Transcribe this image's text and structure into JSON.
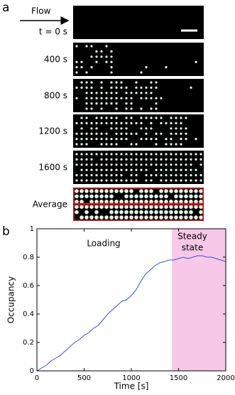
{
  "panel_a": {
    "label": "a",
    "flow": "Flow",
    "frames": [
      "t = 0 s",
      "400 s",
      "800 s",
      "1200 s",
      "1600 s",
      "Average"
    ]
  },
  "chart_data": {
    "type": "line",
    "panel_label": "b",
    "xlabel": "Time [s]",
    "ylabel": "Occupancy",
    "annotations": [
      "Loading",
      "Steady",
      "state"
    ],
    "shaded_region": [
      1430,
      2000
    ],
    "shade_color": "#f8c8e8",
    "xlim": [
      0,
      2000
    ],
    "ylim": [
      0,
      1
    ],
    "xticks": [
      0,
      500,
      1000,
      1500,
      2000
    ],
    "yticks": [
      0,
      0.2,
      0.4,
      0.6,
      0.8,
      1
    ],
    "x": [
      0,
      50,
      100,
      150,
      200,
      250,
      300,
      350,
      400,
      450,
      500,
      550,
      600,
      650,
      700,
      750,
      800,
      850,
      900,
      950,
      1000,
      1050,
      1100,
      1150,
      1200,
      1250,
      1300,
      1350,
      1400,
      1450,
      1500,
      1550,
      1600,
      1650,
      1700,
      1750,
      1800,
      1850,
      1900,
      1950,
      2000
    ],
    "series": [
      {
        "name": "Occupancy",
        "color": "#3355cc",
        "values": [
          0,
          0.02,
          0.04,
          0.07,
          0.09,
          0.11,
          0.14,
          0.17,
          0.2,
          0.22,
          0.25,
          0.27,
          0.3,
          0.32,
          0.36,
          0.4,
          0.43,
          0.46,
          0.49,
          0.5,
          0.53,
          0.57,
          0.63,
          0.68,
          0.71,
          0.74,
          0.76,
          0.77,
          0.78,
          0.78,
          0.79,
          0.8,
          0.79,
          0.8,
          0.81,
          0.81,
          0.8,
          0.8,
          0.79,
          0.78,
          0.77
        ]
      }
    ]
  }
}
